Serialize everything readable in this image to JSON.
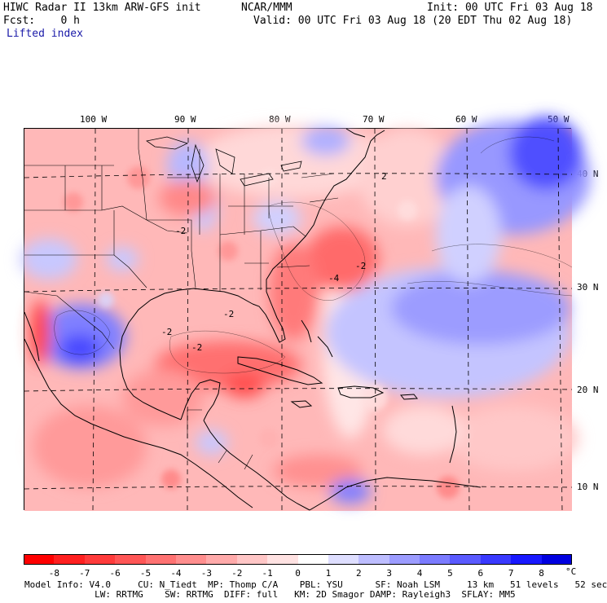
{
  "header": {
    "title_left": "HIWC Radar II 13km ARW-GFS init",
    "title_center": "NCAR/MMM",
    "init": "Init: 00 UTC Fri 03 Aug 18",
    "fcst": "Fcst:    0 h",
    "valid": "Valid: 00 UTC Fri 03 Aug 18 (20 EDT Thu 02 Aug 18)",
    "field": "Lifted index"
  },
  "map": {
    "lon_labels": [
      "100 W",
      "90 W",
      "80 W",
      "70 W",
      "60 W",
      "50 W"
    ],
    "lat_labels": [
      "40 N",
      "30 N",
      "20 N",
      "10 N"
    ],
    "contour_labels": [
      "-2",
      "-2",
      "-2",
      "-2",
      "-4",
      "-2",
      "2"
    ]
  },
  "colorbar": {
    "ticks": [
      "-8",
      "-7",
      "-6",
      "-5",
      "-4",
      "-3",
      "-2",
      "-1",
      "0",
      "1",
      "2",
      "3",
      "4",
      "5",
      "6",
      "7",
      "8"
    ],
    "unit": "°C",
    "colors": [
      "#ff0000",
      "#ff2020",
      "#ff3b3b",
      "#ff5656",
      "#ff7272",
      "#ff8e8e",
      "#ffaaaa",
      "#ffc6c6",
      "#ffe2e2",
      "#ffffff",
      "#dedeff",
      "#bdbdff",
      "#9c9cff",
      "#7b7bff",
      "#5a5aff",
      "#3939ff",
      "#1818ff",
      "#0000e0"
    ]
  },
  "footer": {
    "line1": "Model Info: V4.0     CU: N_Tiedt  MP: Thomp C/A    PBL: YSU      SF: Noah LSM     13 km   51 levels   52 sec",
    "line2": "             LW: RRTMG    SW: RRTMG  DIFF: full   KM: 2D Smagor DAMP: Rayleigh3  SFLAY: MM5"
  }
}
